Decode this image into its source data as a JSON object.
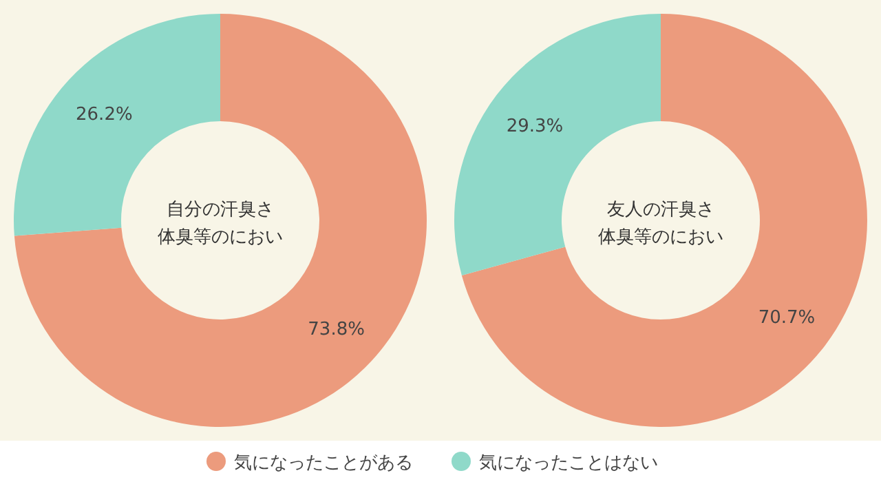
{
  "chart_data": [
    {
      "type": "donut",
      "title": "自分の汗臭さ",
      "subtitle": "体臭等のにおい",
      "categories": [
        "気になったことがある",
        "気になったことはない"
      ],
      "values": [
        73.8,
        26.2
      ],
      "colors": [
        "#ec9b7d",
        "#8fd9c9"
      ],
      "value_labels": [
        "73.8%",
        "26.2%"
      ],
      "legend": "bottom"
    },
    {
      "type": "donut",
      "title": "友人の汗臭さ",
      "subtitle": "体臭等のにおい",
      "categories": [
        null,
        null
      ],
      "values": [
        70.7,
        29.3
      ],
      "colors": [
        "#ec9b7d",
        "#8fd9c9"
      ],
      "value_labels": [
        "70.7%",
        "29.3%"
      ]
    }
  ]
}
